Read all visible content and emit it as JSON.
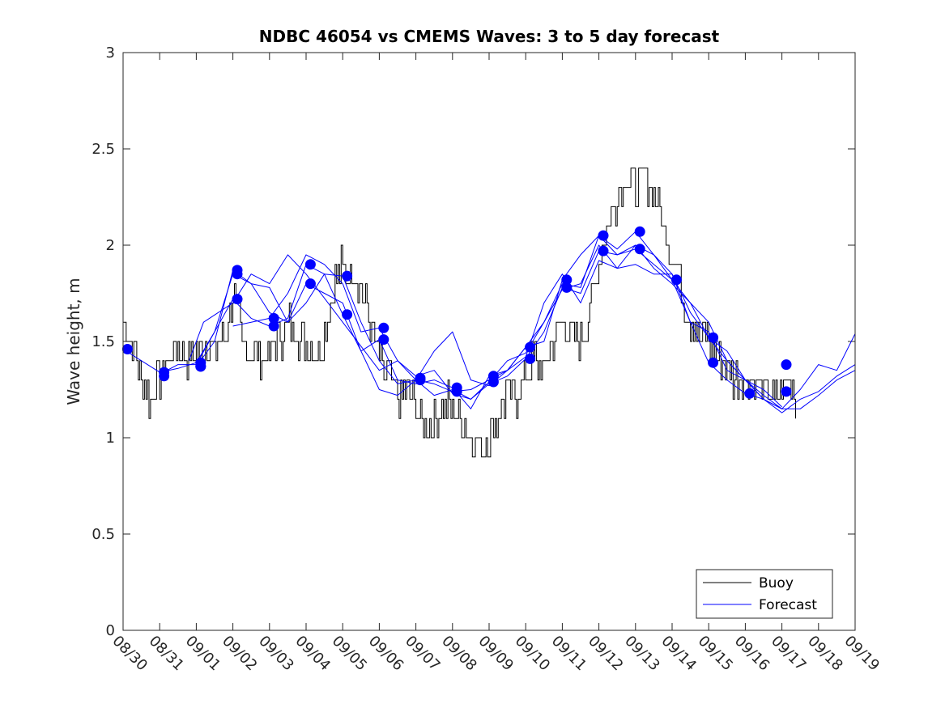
{
  "chart_data": {
    "type": "line",
    "title": "NDBC 46054 vs CMEMS Waves: 3 to 5 day forecast",
    "xlabel": "",
    "ylabel": "Wave height, m",
    "x_unit": "days since 08/30 00:00",
    "xlim": [
      0,
      20
    ],
    "ylim": [
      0,
      3
    ],
    "yticks": [
      0,
      0.5,
      1,
      1.5,
      2,
      2.5,
      3
    ],
    "ytick_labels": [
      "0",
      "0.5",
      "1",
      "1.5",
      "2",
      "2.5",
      "3"
    ],
    "xticks": [
      0,
      1,
      2,
      3,
      4,
      5,
      6,
      7,
      8,
      9,
      10,
      11,
      12,
      13,
      14,
      15,
      16,
      17,
      18,
      19,
      20
    ],
    "xtick_labels": [
      "08/30",
      "08/31",
      "09/01",
      "09/02",
      "09/03",
      "09/04",
      "09/05",
      "09/06",
      "09/07",
      "09/08",
      "09/09",
      "09/10",
      "09/11",
      "09/12",
      "09/13",
      "09/14",
      "09/15",
      "09/16",
      "09/17",
      "09/18",
      "09/19"
    ],
    "legend": {
      "position": "bottom-right",
      "entries": [
        {
          "label": "Buoy",
          "color": "#000000"
        },
        {
          "label": "Forecast",
          "color": "#0000ff"
        }
      ]
    },
    "colors": {
      "buoy": "#000000",
      "forecast": "#0000ff",
      "markers": "#0000ff"
    },
    "series": [
      {
        "name": "Buoy",
        "x": [
          0,
          0.25,
          0.5,
          0.75,
          1,
          1.25,
          1.5,
          1.75,
          2,
          2.25,
          2.5,
          2.75,
          3,
          3.25,
          3.5,
          3.75,
          4,
          4.25,
          4.5,
          4.75,
          5,
          5.25,
          5.5,
          5.75,
          6,
          6.25,
          6.5,
          6.75,
          7,
          7.25,
          7.5,
          7.75,
          8,
          8.25,
          8.5,
          8.75,
          9,
          9.25,
          9.5,
          9.75,
          10,
          10.25,
          10.5,
          10.75,
          11,
          11.25,
          11.5,
          11.75,
          12,
          12.25,
          12.5,
          12.75,
          13,
          13.25,
          13.5,
          13.75,
          14,
          14.25,
          14.5,
          14.75,
          15,
          15.25,
          15.5,
          15.75,
          16,
          16.25,
          16.5,
          16.75,
          17,
          17.25,
          17.5,
          17.75,
          18,
          18.25,
          18.4
        ],
        "values": [
          1.6,
          1.5,
          1.3,
          1.2,
          1.3,
          1.4,
          1.5,
          1.4,
          1.45,
          1.5,
          1.45,
          1.5,
          1.75,
          1.5,
          1.45,
          1.4,
          1.45,
          1.5,
          1.6,
          1.55,
          1.5,
          1.45,
          1.55,
          1.8,
          1.9,
          1.85,
          1.8,
          1.6,
          1.4,
          1.3,
          1.2,
          1.25,
          1.15,
          1.05,
          1.1,
          1.2,
          1.15,
          1.1,
          1.0,
          0.95,
          1.0,
          1.1,
          1.25,
          1.2,
          1.3,
          1.4,
          1.35,
          1.5,
          1.6,
          1.55,
          1.5,
          1.7,
          1.9,
          2.1,
          2.25,
          2.35,
          2.3,
          2.35,
          2.25,
          2.1,
          1.95,
          1.8,
          1.6,
          1.55,
          1.5,
          1.4,
          1.35,
          1.3,
          1.3,
          1.3,
          1.25,
          1.2,
          1.25,
          1.3,
          1.2
        ],
        "noise": 0.1
      },
      {
        "name": "Forecast",
        "runs": [
          {
            "x": [
              0,
              0.5,
              1,
              1.5,
              2,
              2.5,
              3,
              3.5,
              4,
              4.5,
              5,
              5.5,
              6,
              6.5,
              7,
              7.5,
              8,
              8.5,
              9,
              9.5,
              10,
              10.5,
              11,
              11.5,
              12,
              12.5,
              13,
              13.5,
              14,
              14.5,
              15,
              15.5,
              16,
              16.5,
              17,
              17.5,
              18,
              18.5,
              19,
              19.5,
              20
            ],
            "values": [
              1.46,
              1.4,
              1.34,
              1.36,
              1.39,
              1.55,
              1.85,
              1.8,
              1.65,
              1.6,
              1.7,
              1.85,
              1.84,
              1.6,
              1.4,
              1.28,
              1.3,
              1.28,
              1.24,
              1.25,
              1.3,
              1.35,
              1.47,
              1.6,
              1.8,
              1.78,
              2.05,
              1.95,
              2.0,
              1.95,
              1.82,
              1.7,
              1.52,
              1.4,
              1.3,
              1.22,
              1.15,
              1.15,
              1.22,
              1.3,
              1.35
            ]
          },
          {
            "x": [
              1,
              1.5,
              2,
              2.5,
              3,
              3.5,
              4,
              4.5,
              5,
              5.5,
              6,
              6.5,
              7,
              7.5,
              8,
              8.5,
              9,
              9.5,
              10,
              10.5,
              11,
              11.5,
              12,
              12.5,
              13,
              13.5,
              14,
              14.5,
              15,
              15.5,
              16,
              16.5,
              17,
              17.5,
              18,
              18.5,
              19,
              19.5,
              20
            ],
            "values": [
              1.33,
              1.38,
              1.38,
              1.55,
              1.72,
              1.62,
              1.58,
              1.62,
              1.9,
              1.85,
              1.64,
              1.45,
              1.25,
              1.22,
              1.3,
              1.22,
              1.25,
              1.2,
              1.28,
              1.32,
              1.41,
              1.55,
              1.78,
              1.75,
              1.97,
              1.95,
              1.98,
              1.9,
              1.82,
              1.6,
              1.39,
              1.3,
              1.23,
              1.2,
              1.13,
              1.2,
              1.24,
              1.32,
              1.38
            ]
          },
          {
            "x": [
              2,
              2.5,
              3,
              3.5,
              4,
              4.5,
              5,
              5.5,
              6,
              6.5,
              7,
              7.5,
              8,
              8.5,
              9,
              9.5,
              10,
              10.5,
              11,
              11.5,
              12,
              12.5,
              13,
              13.5,
              14,
              14.5,
              15,
              15.5,
              16,
              16.5,
              17,
              17.5,
              18,
              18.5,
              19,
              19.5,
              20
            ],
            "values": [
              1.37,
              1.5,
              1.87,
              1.8,
              1.78,
              1.6,
              1.8,
              1.75,
              1.7,
              1.45,
              1.51,
              1.3,
              1.28,
              1.3,
              1.26,
              1.15,
              1.32,
              1.35,
              1.47,
              1.5,
              1.82,
              1.95,
              2.05,
              1.98,
              2.07,
              1.95,
              1.85,
              1.65,
              1.52,
              1.45,
              1.3,
              1.2,
              1.15,
              1.25,
              1.38,
              1.35,
              1.54
            ]
          },
          {
            "x": [
              3,
              3.5,
              4,
              4.5,
              5,
              5.5,
              6,
              6.5,
              7,
              7.5,
              8,
              8.5,
              9,
              9.5,
              10,
              10.5,
              11,
              11.5,
              12,
              12.5,
              13,
              13.5,
              14,
              14.5,
              15,
              15.5,
              16,
              16.5,
              17,
              17.5,
              18
            ],
            "values": [
              1.58,
              1.6,
              1.62,
              1.75,
              1.95,
              1.9,
              1.8,
              1.55,
              1.57,
              1.4,
              1.32,
              1.35,
              1.23,
              1.2,
              1.29,
              1.4,
              1.44,
              1.6,
              1.77,
              1.8,
              2.0,
              1.88,
              2.0,
              1.88,
              1.8,
              1.7,
              1.6,
              1.4,
              1.3,
              1.25,
              1.16
            ]
          },
          {
            "x": [
              1.8,
              2.2,
              3,
              3.5,
              4,
              4.5,
              5,
              6,
              7,
              7.5,
              8,
              8.5,
              9,
              9.5,
              10,
              10.5,
              11,
              11.5,
              12,
              12.5,
              13,
              13.5,
              14,
              14.5,
              15,
              15.5,
              16,
              16.5,
              17,
              17.5,
              18
            ],
            "values": [
              1.4,
              1.6,
              1.7,
              1.85,
              1.8,
              1.95,
              1.85,
              1.6,
              1.35,
              1.4,
              1.3,
              1.45,
              1.55,
              1.3,
              1.27,
              1.35,
              1.42,
              1.7,
              1.85,
              1.7,
              1.92,
              1.88,
              1.9,
              1.85,
              1.85,
              1.6,
              1.55,
              1.35,
              1.3,
              1.2,
              1.15
            ]
          }
        ]
      }
    ],
    "markers": {
      "x": [
        0.12,
        1.12,
        1.12,
        2.12,
        2.12,
        3.12,
        3.12,
        4.12,
        5.12,
        5.12,
        6.12,
        7.12,
        7.12,
        8.12,
        9.12,
        10.12,
        11.12,
        11.12,
        12.12,
        12.12,
        13.12,
        13.12,
        14.12,
        14.12,
        15.12,
        16.12,
        16.12,
        17.12,
        18.12,
        18.12,
        4.12,
        6.12,
        8.12,
        9.12,
        10.12,
        3.12,
        2.12
      ],
      "values": [
        1.46,
        1.34,
        1.32,
        1.39,
        1.37,
        1.87,
        1.85,
        1.62,
        1.9,
        1.8,
        1.84,
        1.57,
        1.51,
        1.31,
        1.26,
        1.32,
        1.47,
        1.41,
        1.82,
        1.78,
        2.05,
        1.97,
        2.07,
        1.98,
        1.82,
        1.52,
        1.39,
        1.23,
        1.38,
        1.24,
        1.58,
        1.64,
        1.3,
        1.24,
        1.29,
        1.72,
        1.37
      ]
    }
  }
}
